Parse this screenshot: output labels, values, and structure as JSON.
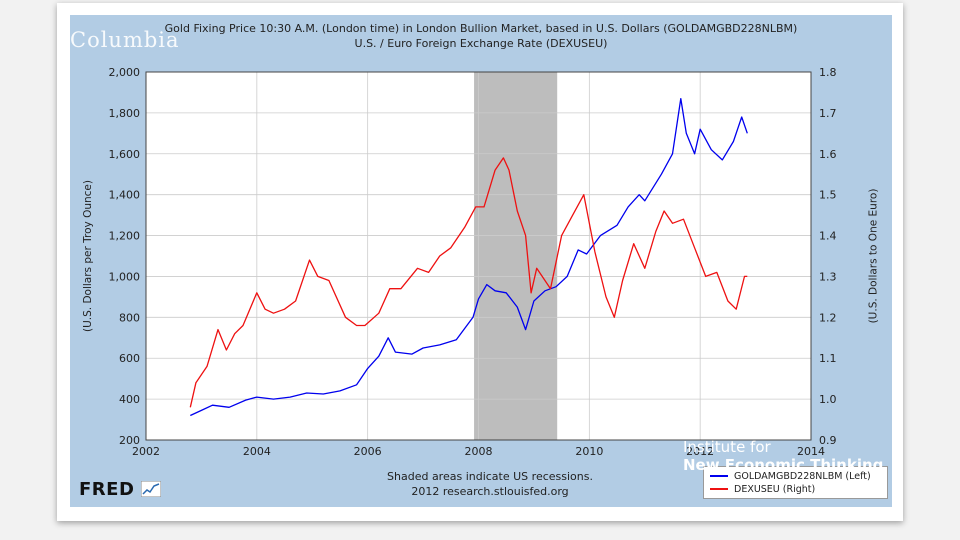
{
  "slide": {
    "watermark": "Columbia",
    "brand_right_line1": "Institute for",
    "brand_right_line2": "New Economic Thinking"
  },
  "chart_data": {
    "type": "line",
    "title": "Gold Fixing Price 10:30 A.M. (London time) in London Bullion Market, based in U.S. Dollars (GOLDAMGBD228NLBM)",
    "subtitle": "U.S. / Euro Foreign Exchange Rate (DEXUSEU)",
    "ylabel_left": "(U.S. Dollars per Troy Ounce)",
    "ylabel_right": "(U.S. Dollars to One Euro)",
    "xlim": [
      2002,
      2014
    ],
    "ylim_left": [
      200,
      2000
    ],
    "ylim_right": [
      0.9,
      1.8
    ],
    "x_ticks": [
      "2002",
      "2004",
      "2006",
      "2008",
      "2010",
      "2012",
      "2014"
    ],
    "y_ticks_left": [
      "200",
      "400",
      "600",
      "800",
      "1,000",
      "1,200",
      "1,400",
      "1,600",
      "1,800",
      "2,000"
    ],
    "y_ticks_right": [
      "0.9",
      "1.0",
      "1.1",
      "1.2",
      "1.3",
      "1.4",
      "1.5",
      "1.6",
      "1.7",
      "1.8"
    ],
    "grid": true,
    "recession": {
      "start": 2007.92,
      "end": 2009.42
    },
    "series": [
      {
        "name": "GOLDAMGBD228NLBM (Left)",
        "axis": "left",
        "color": "#0000ee",
        "x": [
          2002.8,
          2003.0,
          2003.2,
          2003.5,
          2003.8,
          2004.0,
          2004.3,
          2004.6,
          2004.9,
          2005.2,
          2005.5,
          2005.8,
          2006.0,
          2006.2,
          2006.37,
          2006.5,
          2006.8,
          2007.0,
          2007.3,
          2007.6,
          2007.9,
          2008.0,
          2008.15,
          2008.3,
          2008.5,
          2008.7,
          2008.85,
          2009.0,
          2009.2,
          2009.4,
          2009.6,
          2009.8,
          2009.95,
          2010.2,
          2010.5,
          2010.7,
          2010.9,
          2011.0,
          2011.3,
          2011.5,
          2011.65,
          2011.75,
          2011.9,
          2012.0,
          2012.2,
          2012.4,
          2012.6,
          2012.75,
          2012.85
        ],
        "values": [
          320,
          345,
          370,
          360,
          395,
          410,
          400,
          410,
          430,
          425,
          440,
          470,
          550,
          610,
          700,
          630,
          620,
          650,
          665,
          690,
          800,
          890,
          960,
          930,
          920,
          850,
          740,
          880,
          930,
          950,
          1000,
          1130,
          1110,
          1200,
          1250,
          1340,
          1400,
          1370,
          1500,
          1600,
          1870,
          1700,
          1600,
          1720,
          1620,
          1570,
          1660,
          1780,
          1700
        ]
      },
      {
        "name": "DEXUSEU (Right)",
        "axis": "right",
        "color": "#ee1111",
        "x": [
          2002.8,
          2002.9,
          2003.1,
          2003.3,
          2003.45,
          2003.6,
          2003.75,
          2004.0,
          2004.15,
          2004.3,
          2004.5,
          2004.7,
          2004.95,
          2005.1,
          2005.3,
          2005.6,
          2005.8,
          2005.95,
          2006.2,
          2006.4,
          2006.6,
          2006.9,
          2007.1,
          2007.3,
          2007.5,
          2007.75,
          2007.95,
          2008.1,
          2008.3,
          2008.45,
          2008.55,
          2008.7,
          2008.85,
          2008.95,
          2009.05,
          2009.15,
          2009.3,
          2009.5,
          2009.7,
          2009.9,
          2010.1,
          2010.3,
          2010.45,
          2010.6,
          2010.8,
          2011.0,
          2011.2,
          2011.35,
          2011.5,
          2011.7,
          2011.9,
          2012.1,
          2012.3,
          2012.5,
          2012.65,
          2012.8,
          2012.85
        ],
        "values": [
          0.98,
          1.04,
          1.08,
          1.17,
          1.12,
          1.16,
          1.18,
          1.26,
          1.22,
          1.21,
          1.22,
          1.24,
          1.34,
          1.3,
          1.29,
          1.2,
          1.18,
          1.18,
          1.21,
          1.27,
          1.27,
          1.32,
          1.31,
          1.35,
          1.37,
          1.42,
          1.47,
          1.47,
          1.56,
          1.59,
          1.56,
          1.46,
          1.4,
          1.26,
          1.32,
          1.3,
          1.27,
          1.4,
          1.45,
          1.5,
          1.36,
          1.25,
          1.2,
          1.29,
          1.38,
          1.32,
          1.41,
          1.46,
          1.43,
          1.44,
          1.37,
          1.3,
          1.31,
          1.24,
          1.22,
          1.3,
          1.3
        ]
      }
    ]
  },
  "footer": {
    "note": "Shaded areas indicate US recessions.",
    "source": "2012 research.stlouisfed.org",
    "logo": "FRED"
  }
}
